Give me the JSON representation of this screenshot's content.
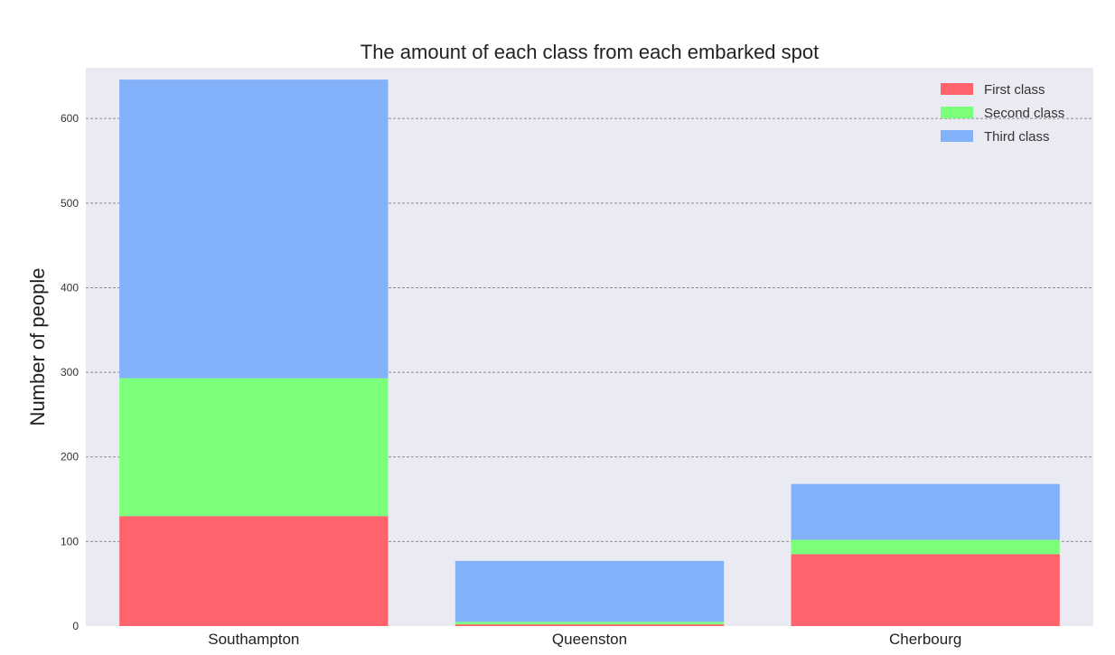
{
  "chart_data": {
    "type": "bar",
    "stacked": true,
    "title": "The amount of each class from each embarked spot",
    "xlabel": "",
    "ylabel": "Number of people",
    "categories": [
      "Southampton",
      "Queenston",
      "Cherbourg"
    ],
    "series": [
      {
        "name": "First class",
        "color": "#ff636b",
        "values": [
          130,
          2,
          85
        ]
      },
      {
        "name": "Second class",
        "color": "#7cff7a",
        "values": [
          163,
          3,
          17
        ]
      },
      {
        "name": "Third class",
        "color": "#82b0f9",
        "values": [
          353,
          72,
          66
        ]
      }
    ],
    "ylim": [
      0,
      660
    ],
    "yticks": [
      0,
      100,
      200,
      300,
      400,
      500,
      600
    ],
    "grid": "horizontal dashed",
    "legend_position": "top-right",
    "background": "#eaeaf2"
  }
}
